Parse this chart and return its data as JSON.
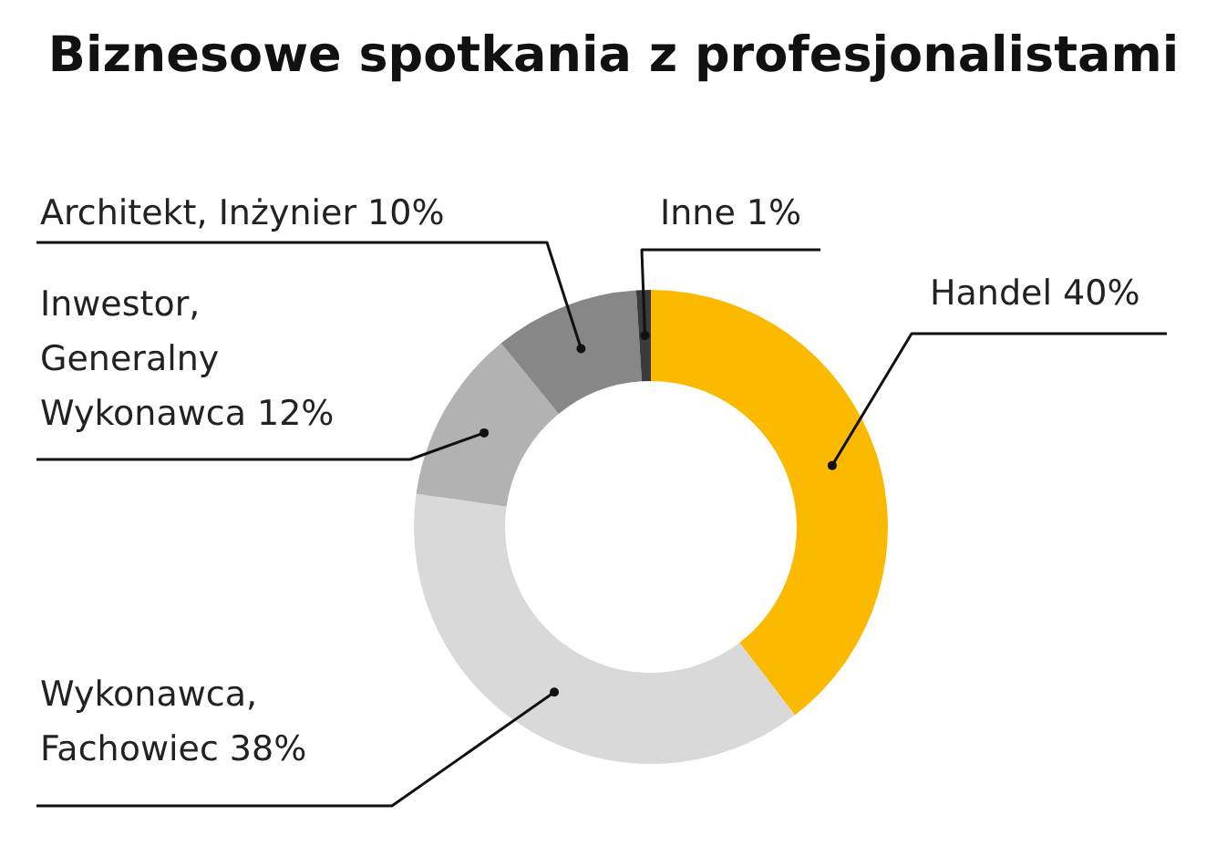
{
  "chart_data": {
    "type": "donut",
    "title": "Biznesowe spotkania z profesjonalistami",
    "categories": [
      "Handel",
      "Wykonawca, Fachowiec",
      "Inwestor, Generalny Wykonawca",
      "Architekt, Inżynier",
      "Inne"
    ],
    "values": [
      40,
      38,
      12,
      10,
      1
    ],
    "value_labels": [
      "40%",
      "38%",
      "12%",
      "10%",
      "1%"
    ],
    "colors": [
      "#fbb900",
      "#d9d9d9",
      "#b2b2b2",
      "#878787",
      "#3a3a3a"
    ]
  }
}
